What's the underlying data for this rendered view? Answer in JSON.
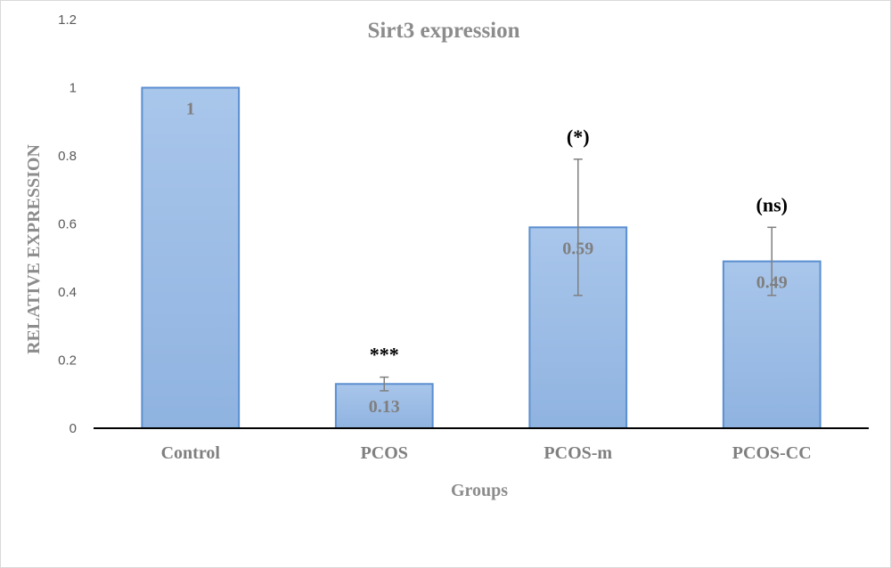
{
  "chart_data": {
    "type": "bar",
    "title": "Sirt3 expression",
    "xlabel": "Groups",
    "ylabel": "RELATIVE EXPRESSION",
    "categories": [
      "Control",
      "PCOS",
      "PCOS-m",
      "PCOS-CC"
    ],
    "values": [
      1,
      0.13,
      0.59,
      0.49
    ],
    "value_labels": [
      "1",
      "0.13",
      "0.59",
      "0.49"
    ],
    "error": [
      0,
      0.02,
      0.2,
      0.1
    ],
    "significance": [
      "",
      "***",
      "(*)",
      "(ns)"
    ],
    "ylim": [
      0,
      1.2
    ],
    "yticks": [
      "0",
      "0.2",
      "0.4",
      "0.6",
      "0.8",
      "1",
      "1.2"
    ],
    "grid": false,
    "legend": "none",
    "colors": {
      "bar_fill_top": "#a9c6eb",
      "bar_fill_bottom": "#8fb3e0",
      "bar_stroke": "#5b8fd0",
      "error_bar": "#7f7f7f",
      "axis": "#000000"
    }
  }
}
